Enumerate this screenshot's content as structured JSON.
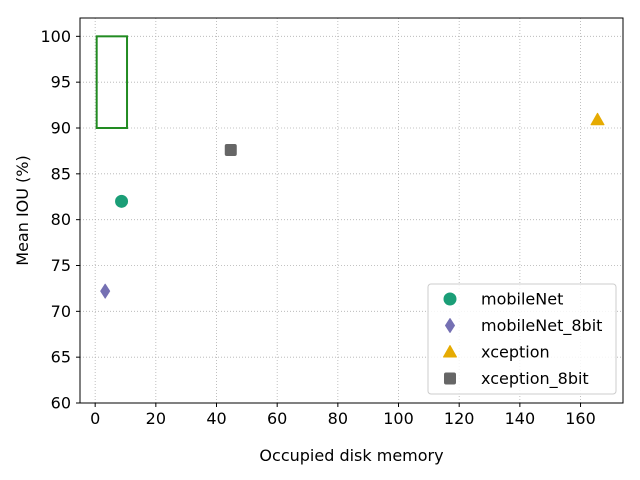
{
  "chart_data": {
    "type": "scatter",
    "title": "",
    "xlabel": "Occupied disk memory",
    "ylabel": "Mean IOU (%)",
    "xlim": [
      -5,
      174
    ],
    "ylim": [
      60,
      102
    ],
    "xticks": [
      0,
      20,
      40,
      60,
      80,
      100,
      120,
      140,
      160
    ],
    "yticks": [
      60,
      65,
      70,
      75,
      80,
      85,
      90,
      95,
      100
    ],
    "grid": true,
    "legend_position": "lower-right",
    "series": [
      {
        "name": "mobileNet",
        "marker": "circle",
        "color": "#1b9e77",
        "points": [
          {
            "x": 8.7,
            "y": 82.0
          }
        ]
      },
      {
        "name": "mobileNet_8bit",
        "marker": "thin-diamond",
        "color": "#7570b3",
        "points": [
          {
            "x": 3.3,
            "y": 72.2
          }
        ]
      },
      {
        "name": "xception",
        "marker": "triangle",
        "color": "#e6ab02",
        "points": [
          {
            "x": 165.6,
            "y": 90.9
          }
        ]
      },
      {
        "name": "xception_8bit",
        "marker": "square",
        "color": "#666666",
        "points": [
          {
            "x": 44.7,
            "y": 87.6
          }
        ]
      }
    ],
    "annotations": [
      {
        "type": "rectangle",
        "color": "#228b22",
        "x0": 0.5,
        "x1": 10.5,
        "y0": 90,
        "y1": 100
      }
    ]
  }
}
